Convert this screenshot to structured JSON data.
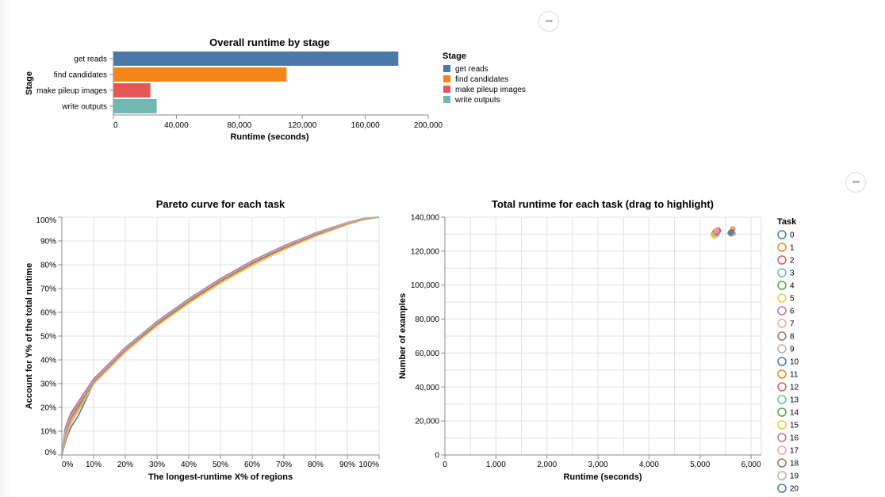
{
  "menu": {
    "more_label": "•••"
  },
  "chart_data": [
    {
      "type": "bar",
      "title": "Overall runtime by stage",
      "xlabel": "Runtime (seconds)",
      "ylabel": "Stage",
      "orientation": "horizontal",
      "categories": [
        "get reads",
        "find candidates",
        "make pileup images",
        "write outputs"
      ],
      "values": [
        181000,
        110000,
        23500,
        27500
      ],
      "colors": [
        "#4c78a8",
        "#f58518",
        "#e45756",
        "#72b7b2"
      ],
      "xlim": [
        0,
        200000
      ],
      "xticks": [
        0,
        40000,
        80000,
        120000,
        160000,
        200000
      ],
      "xtick_labels": [
        "0",
        "40,000",
        "80,000",
        "120,000",
        "160,000",
        "200,000"
      ],
      "grid": false,
      "legend": {
        "title": "Stage",
        "placement": "right",
        "entries": [
          "get reads",
          "find candidates",
          "make pileup images",
          "write outputs"
        ]
      }
    },
    {
      "type": "line",
      "title": "Pareto curve for each task",
      "xlabel": "The longest-runtime X% of regions",
      "ylabel": "Account for Y% of the total runtime",
      "xlim": [
        0,
        1
      ],
      "ylim": [
        0,
        1
      ],
      "xtick_labels": [
        "0%",
        "10%",
        "20%",
        "30%",
        "40%",
        "50%",
        "60%",
        "70%",
        "80%",
        "90%",
        "100%"
      ],
      "ytick_labels": [
        "0%",
        "10%",
        "20%",
        "30%",
        "40%",
        "50%",
        "60%",
        "70%",
        "80%",
        "90%",
        "100%"
      ],
      "grid": true,
      "series": [
        {
          "color": "#4c78a8",
          "x": [
            0,
            0.01,
            0.02,
            0.03,
            0.05,
            0.1,
            0.2,
            0.3,
            0.4,
            0.5,
            0.6,
            0.7,
            0.8,
            0.9,
            0.95,
            1
          ],
          "y": [
            0,
            0.05,
            0.09,
            0.12,
            0.16,
            0.3,
            0.44,
            0.555,
            0.65,
            0.735,
            0.81,
            0.875,
            0.93,
            0.975,
            0.993,
            1
          ]
        },
        {
          "color": "#f58518",
          "x": [
            0,
            0.01,
            0.02,
            0.03,
            0.05,
            0.1,
            0.2,
            0.3,
            0.4,
            0.5,
            0.6,
            0.7,
            0.8,
            0.9,
            0.95,
            1
          ],
          "y": [
            0,
            0.07,
            0.11,
            0.14,
            0.19,
            0.3,
            0.435,
            0.545,
            0.64,
            0.725,
            0.8,
            0.866,
            0.922,
            0.97,
            0.99,
            1
          ]
        },
        {
          "color": "#e45756",
          "x": [
            0,
            0.01,
            0.02,
            0.03,
            0.05,
            0.1,
            0.2,
            0.3,
            0.4,
            0.5,
            0.6,
            0.7,
            0.8,
            0.9,
            0.95,
            1
          ],
          "y": [
            0,
            0.1,
            0.14,
            0.17,
            0.215,
            0.315,
            0.45,
            0.56,
            0.655,
            0.74,
            0.815,
            0.878,
            0.932,
            0.977,
            0.994,
            1
          ]
        },
        {
          "color": "#72b7b2",
          "x": [
            0,
            0.01,
            0.02,
            0.03,
            0.05,
            0.1,
            0.2,
            0.3,
            0.4,
            0.5,
            0.6,
            0.7,
            0.8,
            0.9,
            0.95,
            1
          ],
          "y": [
            0,
            0.08,
            0.12,
            0.155,
            0.2,
            0.305,
            0.44,
            0.55,
            0.645,
            0.73,
            0.805,
            0.87,
            0.926,
            0.973,
            0.992,
            1
          ]
        },
        {
          "color": "#54a24b",
          "x": [
            0,
            0.01,
            0.02,
            0.03,
            0.05,
            0.1,
            0.2,
            0.3,
            0.4,
            0.5,
            0.6,
            0.7,
            0.8,
            0.9,
            0.95,
            1
          ],
          "y": [
            0,
            0.09,
            0.13,
            0.16,
            0.205,
            0.31,
            0.445,
            0.553,
            0.648,
            0.733,
            0.808,
            0.872,
            0.928,
            0.975,
            0.993,
            1
          ]
        },
        {
          "color": "#eeca3b",
          "x": [
            0,
            0.01,
            0.02,
            0.03,
            0.05,
            0.1,
            0.2,
            0.3,
            0.4,
            0.5,
            0.6,
            0.7,
            0.8,
            0.9,
            0.95,
            1
          ],
          "y": [
            0,
            0.06,
            0.1,
            0.135,
            0.18,
            0.298,
            0.432,
            0.542,
            0.637,
            0.722,
            0.797,
            0.863,
            0.92,
            0.968,
            0.989,
            1
          ]
        },
        {
          "color": "#b279a2",
          "x": [
            0,
            0.01,
            0.02,
            0.03,
            0.05,
            0.1,
            0.2,
            0.3,
            0.4,
            0.5,
            0.6,
            0.7,
            0.8,
            0.9,
            0.95,
            1
          ],
          "y": [
            0,
            0.11,
            0.15,
            0.18,
            0.22,
            0.32,
            0.452,
            0.562,
            0.657,
            0.742,
            0.817,
            0.88,
            0.934,
            0.978,
            0.995,
            1
          ]
        },
        {
          "color": "#ff9da6",
          "x": [
            0,
            0.01,
            0.02,
            0.03,
            0.05,
            0.1,
            0.2,
            0.3,
            0.4,
            0.5,
            0.6,
            0.7,
            0.8,
            0.9,
            0.95,
            1
          ],
          "y": [
            0,
            0.075,
            0.115,
            0.145,
            0.195,
            0.302,
            0.437,
            0.548,
            0.643,
            0.728,
            0.803,
            0.868,
            0.924,
            0.971,
            0.991,
            1
          ]
        },
        {
          "color": "#9d755d",
          "x": [
            0,
            0.01,
            0.02,
            0.03,
            0.05,
            0.1,
            0.2,
            0.3,
            0.4,
            0.5,
            0.6,
            0.7,
            0.8,
            0.9,
            0.95,
            1
          ],
          "y": [
            0,
            0.085,
            0.125,
            0.158,
            0.2,
            0.307,
            0.442,
            0.551,
            0.646,
            0.731,
            0.806,
            0.871,
            0.927,
            0.974,
            0.992,
            1
          ]
        },
        {
          "color": "#bab0ac",
          "x": [
            0,
            0.01,
            0.02,
            0.03,
            0.05,
            0.1,
            0.2,
            0.3,
            0.4,
            0.5,
            0.6,
            0.7,
            0.8,
            0.9,
            0.95,
            1
          ],
          "y": [
            0,
            0.095,
            0.135,
            0.165,
            0.21,
            0.312,
            0.447,
            0.557,
            0.652,
            0.737,
            0.812,
            0.876,
            0.931,
            0.976,
            0.994,
            1
          ]
        }
      ]
    },
    {
      "type": "scatter",
      "title": "Total runtime for each task (drag to highlight)",
      "xlabel": "Runtime (seconds)",
      "ylabel": "Number of examples",
      "xlim": [
        0,
        6200
      ],
      "ylim": [
        0,
        140000
      ],
      "xticks": [
        0,
        1000,
        2000,
        3000,
        4000,
        5000,
        6000
      ],
      "xtick_labels": [
        "0",
        "1,000",
        "2,000",
        "3,000",
        "4,000",
        "5,000",
        "6,000"
      ],
      "yticks": [
        0,
        20000,
        40000,
        60000,
        80000,
        100000,
        120000,
        140000
      ],
      "ytick_labels": [
        "0",
        "20,000",
        "40,000",
        "60,000",
        "80,000",
        "100,000",
        "120,000",
        "140,000"
      ],
      "grid": true,
      "points": [
        {
          "task": 0,
          "x": 5320,
          "y": 131000
        },
        {
          "task": 1,
          "x": 5640,
          "y": 133000
        },
        {
          "task": 2,
          "x": 5350,
          "y": 132500
        },
        {
          "task": 3,
          "x": 5300,
          "y": 130000
        },
        {
          "task": 4,
          "x": 5620,
          "y": 130500
        },
        {
          "task": 5,
          "x": 5280,
          "y": 129000
        },
        {
          "task": 6,
          "x": 5340,
          "y": 131500
        },
        {
          "task": 7,
          "x": 5310,
          "y": 130800
        },
        {
          "task": 8,
          "x": 5600,
          "y": 131000
        },
        {
          "task": 9,
          "x": 5330,
          "y": 129800
        },
        {
          "task": 10,
          "x": 5610,
          "y": 130200
        },
        {
          "task": 11,
          "x": 5290,
          "y": 131200
        },
        {
          "task": 12,
          "x": 5360,
          "y": 132000
        },
        {
          "task": 13,
          "x": 5300,
          "y": 131800
        },
        {
          "task": 14,
          "x": 5270,
          "y": 130300
        },
        {
          "task": 15,
          "x": 5260,
          "y": 129500
        },
        {
          "task": 16,
          "x": 5330,
          "y": 130600
        },
        {
          "task": 17,
          "x": 5320,
          "y": 132200
        },
        {
          "task": 18,
          "x": 5590,
          "y": 130700
        },
        {
          "task": 19,
          "x": 5650,
          "y": 130400
        },
        {
          "task": 20,
          "x": 5620,
          "y": 131300
        }
      ],
      "legend": {
        "title": "Task",
        "placement": "right",
        "entries": [
          "0",
          "1",
          "2",
          "3",
          "4",
          "5",
          "6",
          "7",
          "8",
          "9",
          "10",
          "11",
          "12",
          "13",
          "14",
          "15",
          "16",
          "17",
          "18",
          "19",
          "20"
        ],
        "colors": [
          "#4c78a8",
          "#f58518",
          "#e45756",
          "#72b7b2",
          "#54a24b",
          "#eeca3b",
          "#b279a2",
          "#ff9da6",
          "#9d755d",
          "#bab0ac",
          "#4c78a8",
          "#f58518",
          "#e45756",
          "#72b7b2",
          "#54a24b",
          "#eeca3b",
          "#b279a2",
          "#ff9da6",
          "#9d755d",
          "#bab0ac",
          "#4c78a8"
        ]
      }
    }
  ]
}
